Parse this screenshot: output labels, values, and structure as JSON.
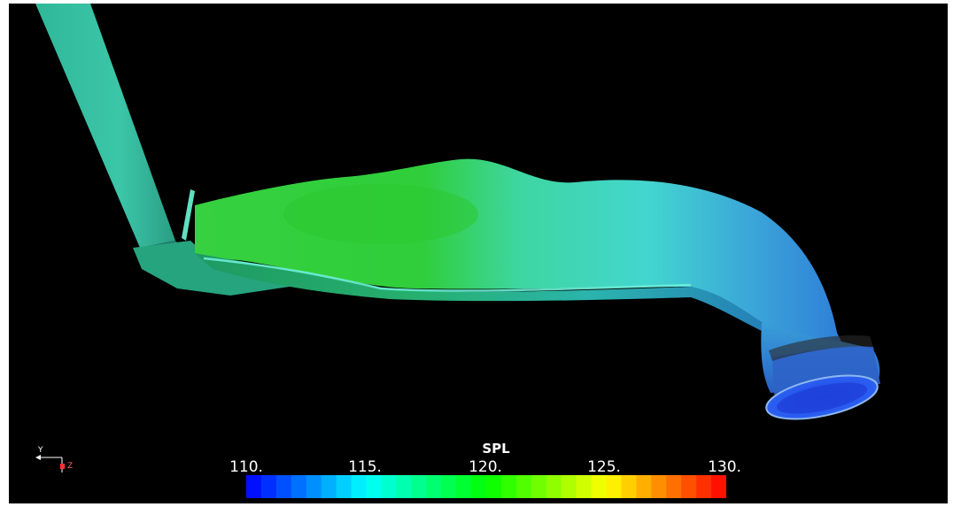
{
  "legend": {
    "title": "SPL",
    "ticks": [
      {
        "value": 110,
        "label": "110."
      },
      {
        "value": 115,
        "label": "115."
      },
      {
        "value": 120,
        "label": "120."
      },
      {
        "value": 125,
        "label": "125."
      },
      {
        "value": 130,
        "label": "130."
      }
    ],
    "range": [
      110,
      130
    ],
    "colormap": [
      "#0000ff",
      "#00ffff",
      "#00ff00",
      "#ffff00",
      "#ff0000"
    ],
    "bands": 32
  },
  "axes_triad": {
    "y_label": "Y",
    "z_label": "Z",
    "y_color": "#ffffff",
    "z_color": "#ff3030"
  },
  "scene": {
    "background": "#000000",
    "duct_colors": {
      "inlet": "#35c4a6",
      "inlet_dark": "#1e8f78",
      "green_region": "#35d24a",
      "cyan_region": "#3fd8c8",
      "blue_region": "#3a8fe0",
      "outlet": "#2050e6"
    }
  }
}
